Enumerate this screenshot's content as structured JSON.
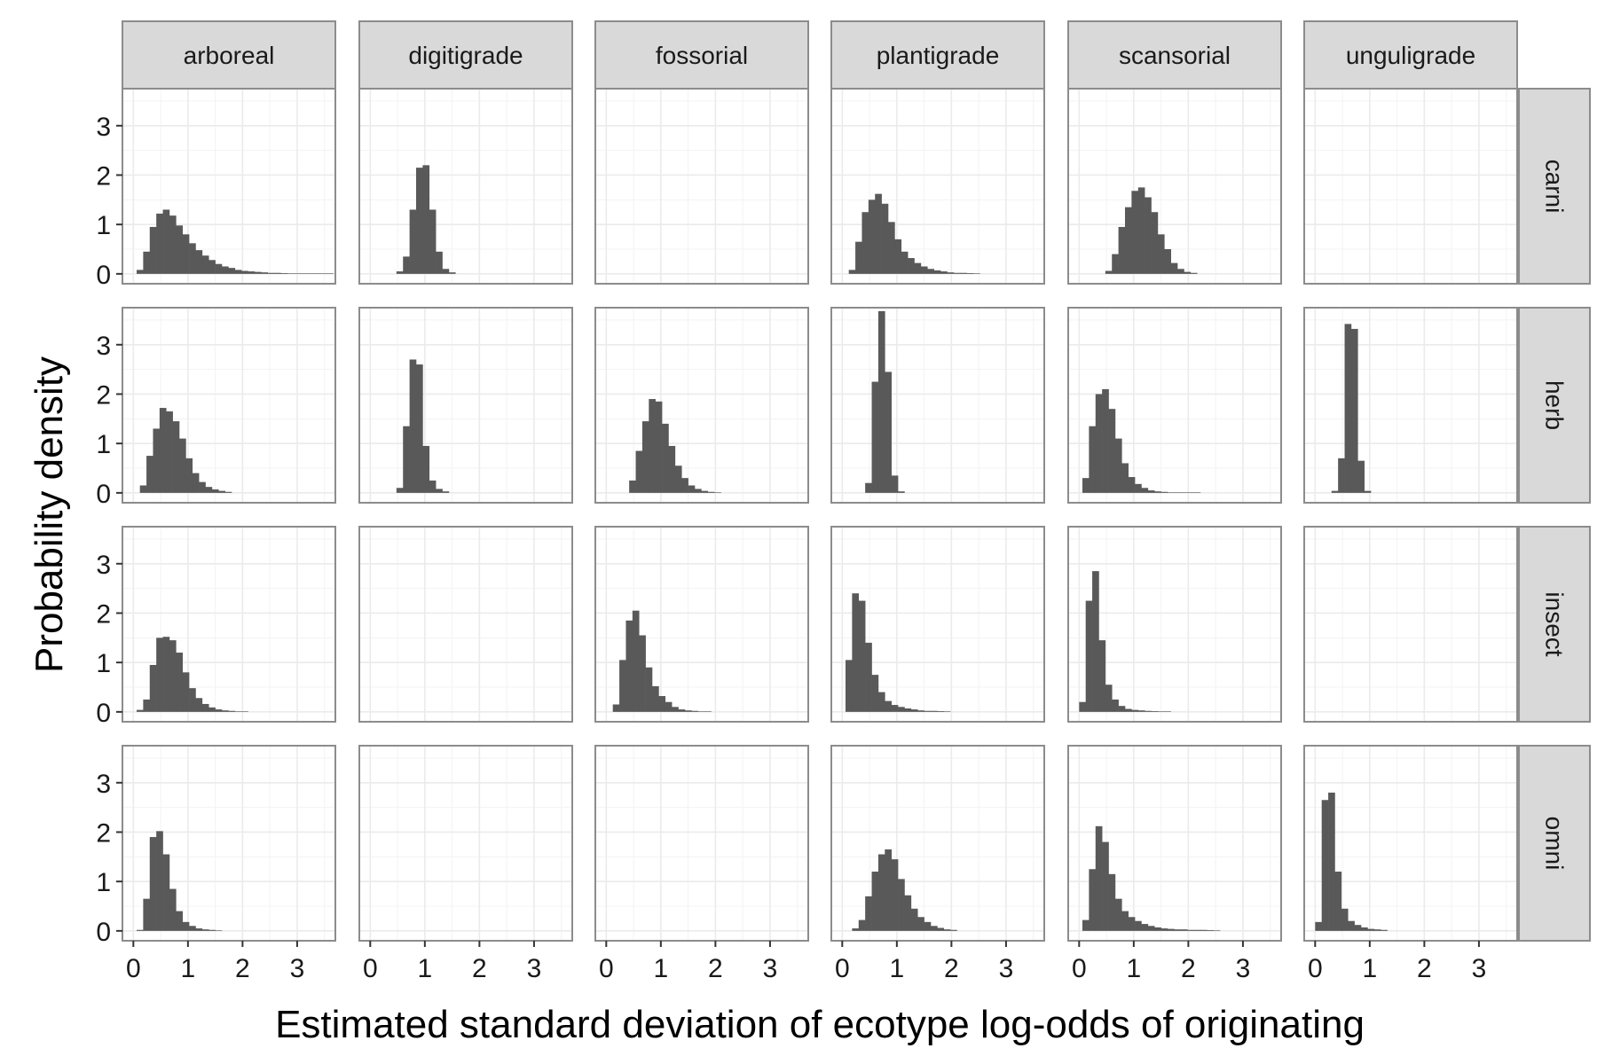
{
  "chart_data": {
    "type": "bar",
    "subtype": "faceted-histogram",
    "xlabel": "Estimated standard deviation of ecotype log-odds of originating",
    "ylabel": "Probability density",
    "x_ticks": [
      "0",
      "1",
      "2",
      "3"
    ],
    "y_ticks": [
      "0",
      "1",
      "2",
      "3"
    ],
    "xlim": [
      -0.2,
      3.7
    ],
    "ylim": [
      -0.2,
      3.75
    ],
    "bin_width": 0.12,
    "grid": true,
    "bar_color": "#595959",
    "panel_background": "#ffffff",
    "grid_color": "#ebebeb",
    "strip_color": "#d9d9d9",
    "facet_columns": [
      "arboreal",
      "digitigrade",
      "fossorial",
      "plantigrade",
      "scansorial",
      "unguligrade"
    ],
    "facet_rows": [
      "carni",
      "herb",
      "insect",
      "omni"
    ],
    "panels": [
      [
        {
          "start": 0.06,
          "values": [
            0.08,
            0.45,
            0.95,
            1.22,
            1.3,
            1.18,
            0.98,
            0.8,
            0.62,
            0.48,
            0.37,
            0.28,
            0.2,
            0.15,
            0.12,
            0.08,
            0.06,
            0.05,
            0.04,
            0.03,
            0.02,
            0.02,
            0.015,
            0.01,
            0.01,
            0.01,
            0.01,
            0.01,
            0.01,
            0.01
          ]
        },
        {
          "start": 0.48,
          "values": [
            0.05,
            0.35,
            1.3,
            2.15,
            2.2,
            1.3,
            0.45,
            0.1,
            0.03
          ]
        },
        {
          "start": 0,
          "values": []
        },
        {
          "start": 0.12,
          "values": [
            0.08,
            0.65,
            1.25,
            1.5,
            1.62,
            1.42,
            1.05,
            0.7,
            0.45,
            0.32,
            0.22,
            0.15,
            0.1,
            0.07,
            0.05,
            0.03,
            0.02,
            0.02,
            0.015,
            0.01
          ]
        },
        {
          "start": 0.48,
          "values": [
            0.06,
            0.4,
            0.95,
            1.35,
            1.68,
            1.75,
            1.55,
            1.25,
            0.8,
            0.5,
            0.22,
            0.1,
            0.04,
            0.02
          ]
        },
        {
          "start": 0,
          "values": []
        }
      ],
      [
        {
          "start": 0.12,
          "values": [
            0.15,
            0.75,
            1.3,
            1.72,
            1.65,
            1.45,
            1.1,
            0.7,
            0.4,
            0.22,
            0.12,
            0.07,
            0.04,
            0.02
          ]
        },
        {
          "start": 0.48,
          "values": [
            0.1,
            1.35,
            2.7,
            2.6,
            0.95,
            0.25,
            0.08,
            0.03
          ]
        },
        {
          "start": 0.42,
          "values": [
            0.25,
            0.85,
            1.45,
            1.9,
            1.85,
            1.4,
            0.95,
            0.55,
            0.3,
            0.15,
            0.08,
            0.04,
            0.02,
            0.01
          ]
        },
        {
          "start": 0.42,
          "values": [
            0.2,
            2.25,
            3.68,
            2.45,
            0.35,
            0.03
          ]
        },
        {
          "start": 0.06,
          "values": [
            0.3,
            1.35,
            2.0,
            2.1,
            1.7,
            1.1,
            0.6,
            0.32,
            0.18,
            0.1,
            0.05,
            0.03,
            0.02,
            0.01,
            0.01,
            0.01,
            0.01,
            0.01
          ]
        },
        {
          "start": 0.3,
          "values": [
            0.04,
            0.7,
            3.42,
            3.32,
            0.65,
            0.04
          ]
        }
      ],
      [
        {
          "start": 0.06,
          "values": [
            0.04,
            0.25,
            0.95,
            1.5,
            1.52,
            1.45,
            1.2,
            0.8,
            0.48,
            0.28,
            0.16,
            0.09,
            0.05,
            0.03,
            0.02,
            0.01,
            0.01
          ]
        },
        {
          "start": 0,
          "values": []
        },
        {
          "start": 0.12,
          "values": [
            0.15,
            1.05,
            1.85,
            2.05,
            1.55,
            0.9,
            0.52,
            0.32,
            0.2,
            0.1,
            0.05,
            0.03,
            0.02,
            0.01,
            0.01
          ]
        },
        {
          "start": 0.06,
          "values": [
            1.05,
            2.4,
            2.25,
            1.4,
            0.75,
            0.4,
            0.22,
            0.14,
            0.1,
            0.07,
            0.05,
            0.03,
            0.02,
            0.02,
            0.015,
            0.01
          ]
        },
        {
          "start": 0.0,
          "values": [
            0.2,
            2.25,
            2.85,
            1.45,
            0.55,
            0.25,
            0.12,
            0.06,
            0.04,
            0.03,
            0.02,
            0.015,
            0.01,
            0.01
          ]
        },
        {
          "start": 0,
          "values": []
        }
      ],
      [
        {
          "start": 0.06,
          "values": [
            0.02,
            0.65,
            1.9,
            2.02,
            1.55,
            0.85,
            0.4,
            0.18,
            0.1,
            0.05,
            0.03,
            0.02,
            0.01
          ]
        },
        {
          "start": 0,
          "values": []
        },
        {
          "start": 0,
          "values": []
        },
        {
          "start": 0.18,
          "values": [
            0.05,
            0.22,
            0.7,
            1.2,
            1.55,
            1.65,
            1.45,
            1.05,
            0.72,
            0.45,
            0.28,
            0.18,
            0.1,
            0.06,
            0.03,
            0.02
          ]
        },
        {
          "start": 0.06,
          "values": [
            0.22,
            1.25,
            2.12,
            1.8,
            1.15,
            0.65,
            0.4,
            0.28,
            0.2,
            0.14,
            0.1,
            0.07,
            0.05,
            0.04,
            0.03,
            0.03,
            0.02,
            0.02,
            0.02,
            0.015,
            0.01
          ]
        },
        {
          "start": 0.0,
          "values": [
            0.18,
            2.65,
            2.8,
            1.2,
            0.45,
            0.2,
            0.12,
            0.07,
            0.04,
            0.03,
            0.02
          ]
        }
      ]
    ]
  }
}
